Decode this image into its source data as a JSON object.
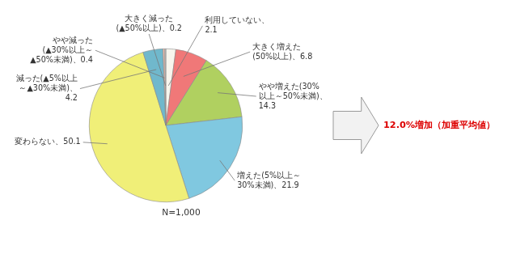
{
  "chart_data": {
    "type": "pie",
    "categories": [
      "利用していない、\n2.1",
      "大きく増えた\n(50%以上)、6.8",
      "やや増えた(30%\n以上～50%未満)、\n14.3",
      "増えた(5%以上～\n30%未満)、21.9",
      "変わらない、50.1",
      "減った(▲5%以上\n～▲30%未満)、\n4.2",
      "やや減った\n(▲30%以上～\n▲50%未満)、0.4",
      "大きく減った\n(▲50%以上)、0.2"
    ],
    "values": [
      2.1,
      6.8,
      14.3,
      21.9,
      50.1,
      4.2,
      0.4,
      0.2
    ],
    "colors": [
      "#f8f6ee",
      "#f07878",
      "#b0d060",
      "#80c8e0",
      "#f0ef78",
      "#70b8cc",
      "#f0c0b0",
      "#c8c8c8"
    ],
    "legend": false,
    "annotations": [
      {
        "text": "N=1,000"
      },
      {
        "text": "12.0%増加（加重平均値）",
        "color": "#dd0000"
      }
    ]
  }
}
